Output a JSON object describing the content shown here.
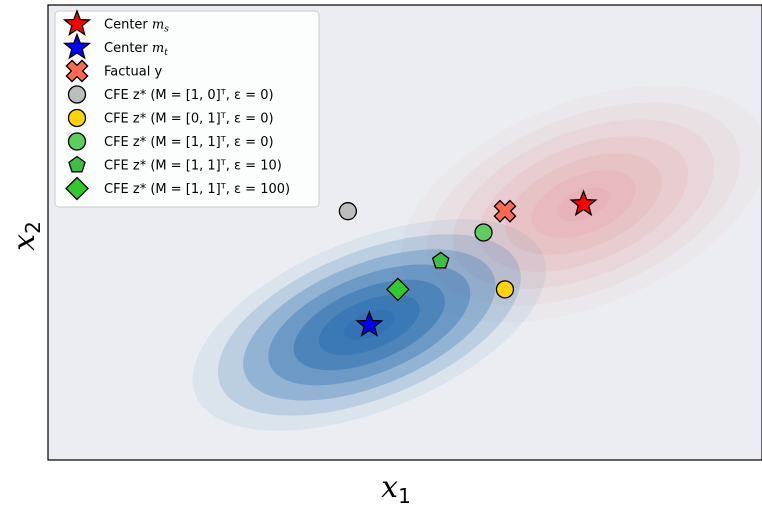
{
  "chart_data": {
    "type": "scatter",
    "title": "",
    "xlabel": "x",
    "xlabel_sub": "1",
    "ylabel": "x",
    "ylabel_sub": "2",
    "xlim": [
      0,
      10
    ],
    "ylim": [
      0,
      6.4
    ],
    "ticks": "none",
    "grid": false,
    "legend_position": "top-left",
    "colors": {
      "background": "#ebedf2",
      "target_density": "#2c6fb0",
      "source_density": "#e8a9ad",
      "center_ms": "#ff0000",
      "center_mt": "#0000ff",
      "factual": "#fa6a50",
      "cfe_m10_e0": "#bdbdbd",
      "cfe_m01_e0": "#ffd400",
      "cfe_m11_e0": "#5fcc5f",
      "cfe_m11_e10": "#3dbd45",
      "cfe_m11_e100": "#2ecb2e"
    },
    "densities": [
      {
        "name": "source",
        "center": [
          7.5,
          3.6
        ],
        "sigma_x": 1.8,
        "sigma_y": 0.95,
        "angle_deg": -22,
        "levels": 7,
        "color": "#e8a9ad"
      },
      {
        "name": "target",
        "center": [
          4.5,
          1.9
        ],
        "sigma_x": 1.75,
        "sigma_y": 0.8,
        "angle_deg": -22,
        "levels": 7,
        "color": "#2c6fb0"
      }
    ],
    "series": [
      {
        "name": "Center m_s",
        "label_text": "Center ",
        "label_var": "m",
        "label_sub": "s",
        "marker": "star",
        "color": "#ff0000",
        "x": 7.5,
        "y": 3.6
      },
      {
        "name": "Center m_t",
        "label_text": "Center ",
        "label_var": "m",
        "label_sub": "t",
        "marker": "star",
        "color": "#0000ff",
        "x": 4.5,
        "y": 1.9
      },
      {
        "name": "Factual y",
        "label_text": "Factual y",
        "marker": "x",
        "color": "#fa6a50",
        "x": 6.4,
        "y": 3.5
      },
      {
        "name": "CFE z* (M=[1,0]^T, ε=0)",
        "label_text": "CFE z*  (M = [1, 0]ᵀ, ε = 0)",
        "marker": "circle",
        "color": "#bdbdbd",
        "x": 4.2,
        "y": 3.5
      },
      {
        "name": "CFE z* (M=[0,1]^T, ε=0)",
        "label_text": "CFE z*  (M = [0, 1]ᵀ, ε = 0)",
        "marker": "circle",
        "color": "#ffd400",
        "x": 6.4,
        "y": 2.4
      },
      {
        "name": "CFE z* (M=[1,1]^T, ε=0)",
        "label_text": "CFE z*  (M = [1, 1]ᵀ, ε = 0)",
        "marker": "circle",
        "color": "#5fcc5f",
        "x": 6.1,
        "y": 3.2
      },
      {
        "name": "CFE z* (M=[1,1]^T, ε=10)",
        "label_text": "CFE z*  (M = [1, 1]ᵀ, ε = 10)",
        "marker": "pentagon",
        "color": "#3dbd45",
        "x": 5.5,
        "y": 2.8
      },
      {
        "name": "CFE z* (M=[1,1]^T, ε=100)",
        "label_text": "CFE z*  (M = [1, 1]ᵀ, ε = 100)",
        "marker": "diamond",
        "color": "#2ecb2e",
        "x": 4.9,
        "y": 2.4
      }
    ]
  }
}
